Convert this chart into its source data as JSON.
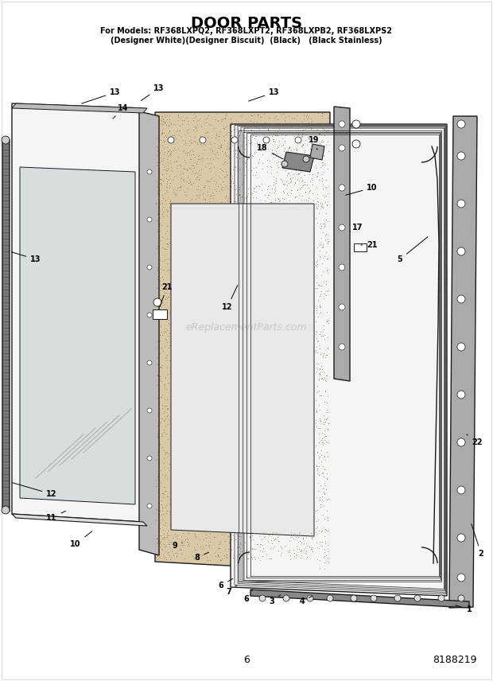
{
  "title": "DOOR PARTS",
  "subtitle_line1": "For Models: RF368LXPQ2, RF368LXPT2, RF368LXPB2, RF368LXPS2",
  "subtitle_line2": "(Designer White)(Designer Biscuit)  (Black)   (Black Stainless)",
  "page_num": "6",
  "doc_num": "8188219",
  "bg_color": "#ffffff",
  "watermark": "eReplacementParts.com",
  "lw_main": 1.0,
  "lw_thin": 0.7,
  "gray_dark": "#1a1a1a",
  "gray_med": "#888888",
  "gray_light": "#cccccc",
  "fill_insul": "#d8c8a8",
  "fill_white": "#f5f5f5"
}
